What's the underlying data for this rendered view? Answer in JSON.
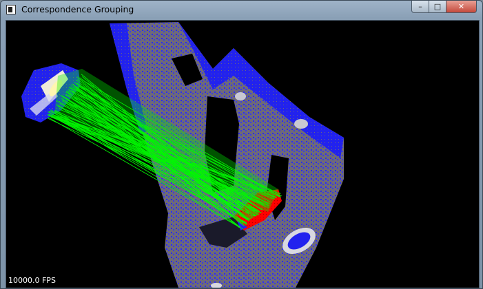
{
  "window": {
    "title": "Correspondence Grouping",
    "buttons": {
      "minimize": "–",
      "maximize": "□",
      "close": "✕"
    }
  },
  "viewer": {
    "fps_label": "10000.0 FPS",
    "colors": {
      "background": "#000000",
      "scene_points": "#1a1aff",
      "scene_surface": "#6e6a78",
      "model_points": "#1a1aff",
      "matched_model": "#ff0000",
      "correspondence_lines": "#00ff00",
      "highlight": "#f5f0c8"
    }
  }
}
